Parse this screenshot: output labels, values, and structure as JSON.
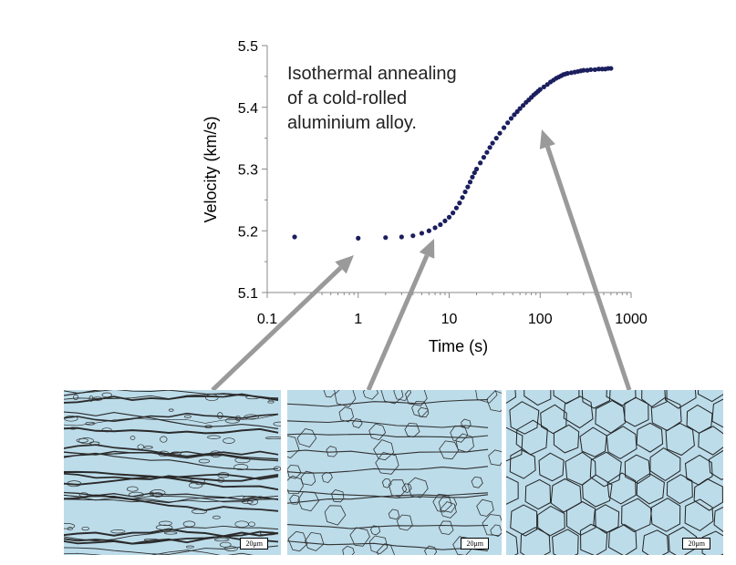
{
  "chart_data": {
    "type": "scatter",
    "title": "",
    "xlabel": "Time (s)",
    "ylabel": "Velocity (km/s)",
    "xscale": "log",
    "xlim": [
      0.1,
      1000
    ],
    "ylim": [
      5.1,
      5.5
    ],
    "x_ticks": [
      "0.1",
      "1",
      "10",
      "100",
      "1000"
    ],
    "y_ticks": [
      "5.1",
      "5.2",
      "5.3",
      "5.4",
      "5.5"
    ],
    "annotation": [
      "Isothermal annealing",
      "of a cold-rolled",
      "aluminium alloy."
    ],
    "marker_color": "#1b1f5e",
    "grid": false,
    "series": [
      {
        "x": [
          0.2,
          1,
          2,
          3,
          4,
          5,
          6,
          7,
          8,
          9,
          10,
          11,
          12,
          13,
          14,
          15,
          16,
          17,
          18,
          19,
          20,
          22,
          24,
          26,
          28,
          30,
          33,
          36,
          40,
          44,
          48,
          52,
          56,
          60,
          65,
          70,
          75,
          80,
          85,
          90,
          95,
          100,
          110,
          120,
          130,
          140,
          150,
          160,
          170,
          180,
          190,
          200,
          220,
          240,
          260,
          280,
          300,
          330,
          360,
          400,
          440,
          480,
          520,
          560,
          600
        ],
        "y": [
          5.19,
          5.188,
          5.189,
          5.19,
          5.192,
          5.196,
          5.2,
          5.205,
          5.21,
          5.216,
          5.222,
          5.229,
          5.237,
          5.245,
          5.254,
          5.263,
          5.271,
          5.279,
          5.287,
          5.294,
          5.3,
          5.31,
          5.319,
          5.327,
          5.335,
          5.342,
          5.35,
          5.358,
          5.367,
          5.375,
          5.382,
          5.388,
          5.393,
          5.398,
          5.403,
          5.408,
          5.412,
          5.416,
          5.42,
          5.423,
          5.426,
          5.429,
          5.433,
          5.437,
          5.441,
          5.444,
          5.447,
          5.449,
          5.451,
          5.453,
          5.454,
          5.455,
          5.456,
          5.457,
          5.458,
          5.459,
          5.46,
          5.46,
          5.461,
          5.461,
          5.462,
          5.462,
          5.462,
          5.463,
          5.463
        ]
      }
    ]
  },
  "micrographs": [
    {
      "scale_label": "20μm"
    },
    {
      "scale_label": "20μm"
    },
    {
      "scale_label": "20μm"
    }
  ]
}
